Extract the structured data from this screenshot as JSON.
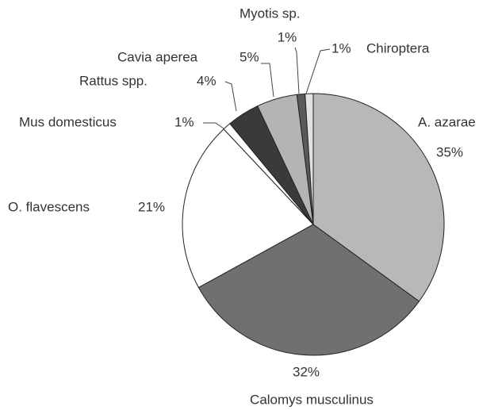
{
  "chart_data": {
    "type": "pie",
    "categories": [
      "A. azarae",
      "Calomys musculinus",
      "O. flavescens",
      "Mus domesticus",
      "Rattus spp.",
      "Cavia aperea",
      "Myotis sp.",
      "Chiroptera"
    ],
    "values": [
      35,
      32,
      21,
      1,
      4,
      5,
      1,
      1
    ],
    "value_labels": [
      "35%",
      "32%",
      "21%",
      "1%",
      "4%",
      "5%",
      "1%",
      "1%"
    ],
    "colors": [
      "#b8b8b8",
      "#707070",
      "#ffffff",
      "#ffffff",
      "#3a3a3a",
      "#b4b4b4",
      "#5a5a5a",
      "#e2e2e2"
    ]
  }
}
